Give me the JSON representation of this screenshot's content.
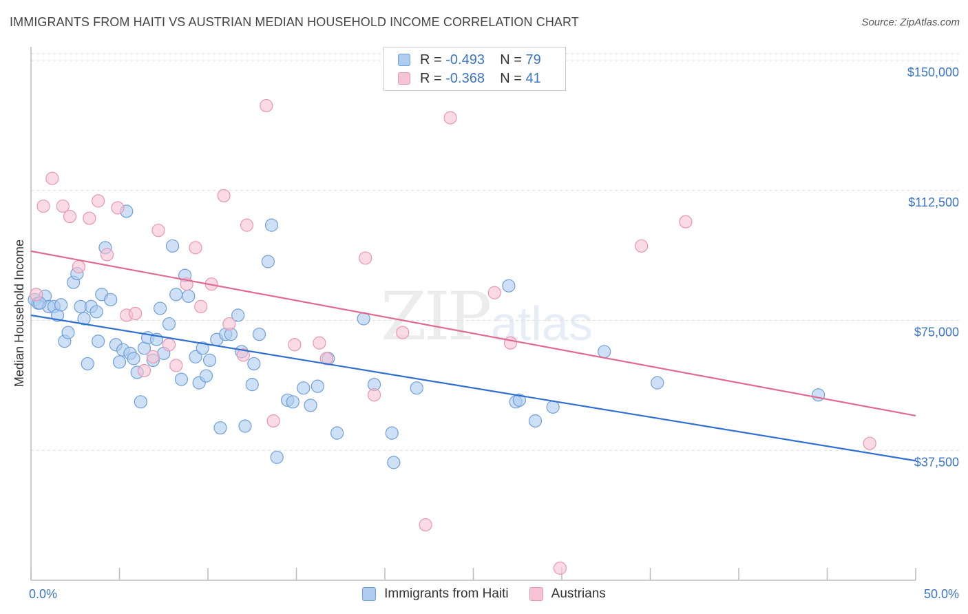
{
  "title": "IMMIGRANTS FROM HAITI VS AUSTRIAN MEDIAN HOUSEHOLD INCOME CORRELATION CHART",
  "source": "Source: ZipAtlas.com",
  "watermark": {
    "zip": "ZIP",
    "atlas": "atlas"
  },
  "legend_top": [
    {
      "r_label": "R = ",
      "r_value": "-0.493",
      "n_label": "N = ",
      "n_value": "79"
    },
    {
      "r_label": "R = ",
      "r_value": "-0.368",
      "n_label": "N = ",
      "n_value": "41"
    }
  ],
  "colors": {
    "haiti_fill": "#aecbf0",
    "haiti_stroke": "#6f9fd8",
    "haiti_line": "#2f6fcf",
    "austrian_fill": "#f6c3d4",
    "austrian_stroke": "#e995b2",
    "austrian_line": "#e06a92",
    "tick_text": "#3a74c4"
  },
  "chart_data": {
    "type": "scatter",
    "title": "IMMIGRANTS FROM HAITI VS AUSTRIAN MEDIAN HOUSEHOLD INCOME CORRELATION CHART",
    "xlabel": "",
    "ylabel": "Median Household Income",
    "xlim": [
      0,
      50
    ],
    "ylim": [
      0,
      152000
    ],
    "x_tick_labels": [
      "0.0%",
      "50.0%"
    ],
    "y_ticks": [
      37500,
      75000,
      112500,
      150000
    ],
    "y_tick_labels": [
      "$37,500",
      "$75,000",
      "$112,500",
      "$150,000"
    ],
    "grid": "horizontal dashed",
    "legend_position": "bottom",
    "series": [
      {
        "name": "Immigrants from Haiti",
        "points": [
          [
            0.2,
            81000
          ],
          [
            0.4,
            80000
          ],
          [
            0.8,
            82000
          ],
          [
            1.0,
            79000
          ],
          [
            1.3,
            79000
          ],
          [
            1.5,
            76500
          ],
          [
            1.7,
            79500
          ],
          [
            1.9,
            69000
          ],
          [
            2.1,
            71500
          ],
          [
            2.4,
            86000
          ],
          [
            2.6,
            88500
          ],
          [
            2.8,
            79000
          ],
          [
            3.0,
            75500
          ],
          [
            3.2,
            62500
          ],
          [
            3.4,
            79000
          ],
          [
            3.7,
            77500
          ],
          [
            3.8,
            69000
          ],
          [
            4.0,
            82500
          ],
          [
            4.2,
            96000
          ],
          [
            4.5,
            81000
          ],
          [
            4.8,
            68000
          ],
          [
            5.0,
            63000
          ],
          [
            5.2,
            66500
          ],
          [
            5.4,
            106500
          ],
          [
            5.6,
            65500
          ],
          [
            5.8,
            64000
          ],
          [
            6.0,
            60000
          ],
          [
            6.2,
            51500
          ],
          [
            6.4,
            67000
          ],
          [
            6.6,
            70000
          ],
          [
            6.9,
            63500
          ],
          [
            7.1,
            69500
          ],
          [
            7.3,
            78500
          ],
          [
            7.5,
            65500
          ],
          [
            7.8,
            74000
          ],
          [
            8.0,
            96500
          ],
          [
            8.2,
            82500
          ],
          [
            8.5,
            58000
          ],
          [
            8.7,
            88000
          ],
          [
            8.9,
            82000
          ],
          [
            9.3,
            64500
          ],
          [
            9.5,
            57000
          ],
          [
            9.7,
            67000
          ],
          [
            9.9,
            59000
          ],
          [
            10.1,
            63500
          ],
          [
            10.5,
            69500
          ],
          [
            10.7,
            44000
          ],
          [
            11.0,
            71000
          ],
          [
            11.3,
            71000
          ],
          [
            11.7,
            76500
          ],
          [
            11.9,
            66000
          ],
          [
            12.1,
            44500
          ],
          [
            12.5,
            56500
          ],
          [
            12.6,
            62500
          ],
          [
            12.9,
            71000
          ],
          [
            13.4,
            92000
          ],
          [
            13.6,
            102500
          ],
          [
            13.9,
            35500
          ],
          [
            14.5,
            52000
          ],
          [
            14.8,
            51500
          ],
          [
            15.4,
            55500
          ],
          [
            15.8,
            50500
          ],
          [
            16.2,
            56000
          ],
          [
            16.8,
            64000
          ],
          [
            17.3,
            42500
          ],
          [
            18.8,
            75500
          ],
          [
            19.4,
            56500
          ],
          [
            20.4,
            42500
          ],
          [
            20.5,
            34000
          ],
          [
            21.8,
            55500
          ],
          [
            27.0,
            85000
          ],
          [
            27.4,
            51500
          ],
          [
            27.6,
            52000
          ],
          [
            28.5,
            46000
          ],
          [
            29.5,
            50000
          ],
          [
            32.4,
            66000
          ],
          [
            35.4,
            57000
          ],
          [
            44.5,
            53500
          ],
          [
            0.5,
            80000
          ]
        ]
      },
      {
        "name": "Austrians",
        "points": [
          [
            0.3,
            82500
          ],
          [
            0.7,
            108000
          ],
          [
            1.2,
            116000
          ],
          [
            1.8,
            108000
          ],
          [
            2.2,
            105000
          ],
          [
            2.7,
            90500
          ],
          [
            3.3,
            104500
          ],
          [
            3.8,
            109500
          ],
          [
            4.3,
            94000
          ],
          [
            4.9,
            107500
          ],
          [
            5.4,
            76500
          ],
          [
            5.9,
            77000
          ],
          [
            6.4,
            60500
          ],
          [
            6.9,
            64500
          ],
          [
            7.2,
            101000
          ],
          [
            7.8,
            68000
          ],
          [
            8.2,
            62000
          ],
          [
            8.8,
            85500
          ],
          [
            9.3,
            96000
          ],
          [
            9.6,
            79000
          ],
          [
            10.2,
            85500
          ],
          [
            10.9,
            111000
          ],
          [
            11.2,
            74000
          ],
          [
            12.0,
            65000
          ],
          [
            12.2,
            102500
          ],
          [
            13.3,
            137000
          ],
          [
            13.7,
            46000
          ],
          [
            14.9,
            68000
          ],
          [
            16.3,
            68500
          ],
          [
            16.7,
            64000
          ],
          [
            18.9,
            93000
          ],
          [
            19.4,
            53500
          ],
          [
            21.0,
            71500
          ],
          [
            22.3,
            16000
          ],
          [
            23.7,
            133500
          ],
          [
            26.2,
            83000
          ],
          [
            27.1,
            68500
          ],
          [
            29.9,
            3500
          ],
          [
            34.5,
            96500
          ],
          [
            37.0,
            103500
          ],
          [
            47.4,
            39500
          ]
        ]
      }
    ],
    "trendlines": [
      {
        "name": "Immigrants from Haiti",
        "x": [
          0,
          50
        ],
        "y": [
          76500,
          34500
        ]
      },
      {
        "name": "Austrians",
        "x": [
          0,
          50
        ],
        "y": [
          95000,
          47500
        ]
      }
    ]
  }
}
